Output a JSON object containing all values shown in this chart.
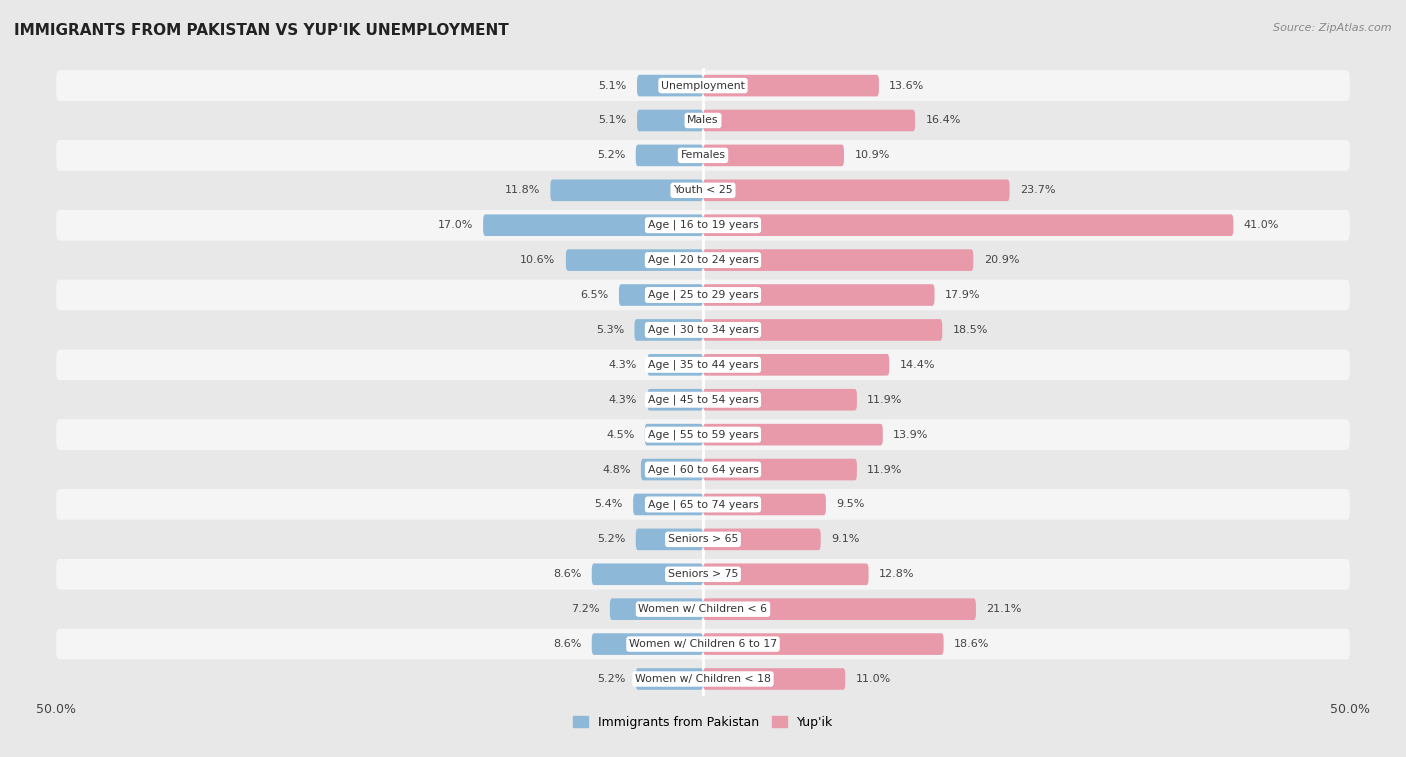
{
  "title": "IMMIGRANTS FROM PAKISTAN VS YUP'IK UNEMPLOYMENT",
  "source": "Source: ZipAtlas.com",
  "categories": [
    "Unemployment",
    "Males",
    "Females",
    "Youth < 25",
    "Age | 16 to 19 years",
    "Age | 20 to 24 years",
    "Age | 25 to 29 years",
    "Age | 30 to 34 years",
    "Age | 35 to 44 years",
    "Age | 45 to 54 years",
    "Age | 55 to 59 years",
    "Age | 60 to 64 years",
    "Age | 65 to 74 years",
    "Seniors > 65",
    "Seniors > 75",
    "Women w/ Children < 6",
    "Women w/ Children 6 to 17",
    "Women w/ Children < 18"
  ],
  "pakistan_values": [
    5.1,
    5.1,
    5.2,
    11.8,
    17.0,
    10.6,
    6.5,
    5.3,
    4.3,
    4.3,
    4.5,
    4.8,
    5.4,
    5.2,
    8.6,
    7.2,
    8.6,
    5.2
  ],
  "yupik_values": [
    13.6,
    16.4,
    10.9,
    23.7,
    41.0,
    20.9,
    17.9,
    18.5,
    14.4,
    11.9,
    13.9,
    11.9,
    9.5,
    9.1,
    12.8,
    21.1,
    18.6,
    11.0
  ],
  "pakistan_color": "#8db8d8",
  "yupik_color": "#e899aa",
  "background_color": "#e8e8e8",
  "row_color_light": "#f5f5f5",
  "row_color_dark": "#e8e8e8",
  "axis_limit": 50.0,
  "legend_pakistan": "Immigrants from Pakistan",
  "legend_yupik": "Yup'ik",
  "bar_height": 0.62,
  "row_rounding": 0.3
}
